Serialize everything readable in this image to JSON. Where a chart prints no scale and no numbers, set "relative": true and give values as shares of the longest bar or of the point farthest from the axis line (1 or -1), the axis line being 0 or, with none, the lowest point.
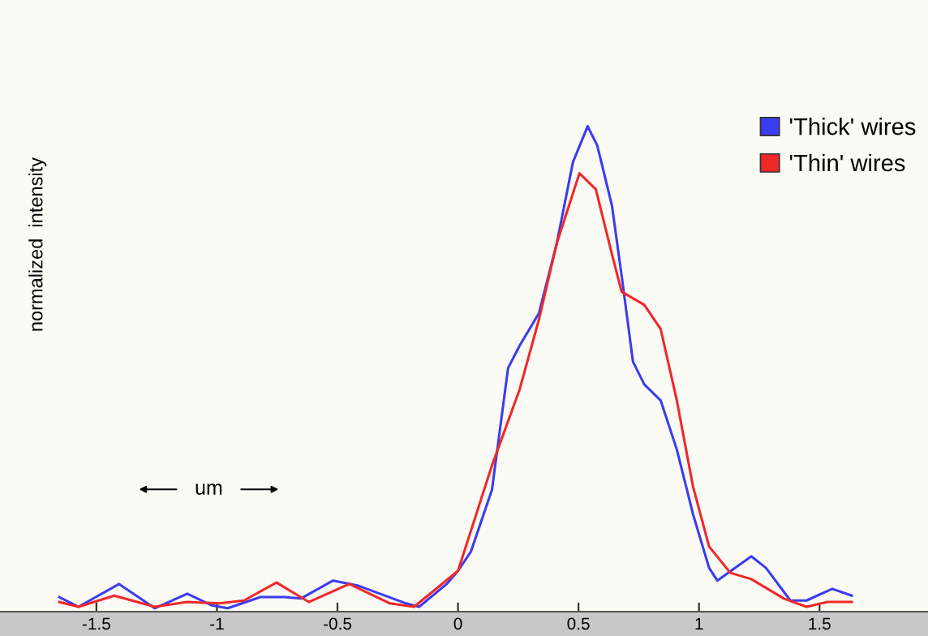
{
  "chart_data": {
    "type": "line",
    "relative": true,
    "ylabel": "normalized  intensity",
    "xlim": [
      -1.9,
      1.95
    ],
    "xticks": [
      -1.5,
      -1,
      -0.5,
      0,
      0.5,
      1,
      1.5
    ],
    "legend": "right",
    "grid": false,
    "marker": "none",
    "line_style": "solid",
    "annotations": [
      "um"
    ],
    "series": [
      {
        "name": "'Thick' wires",
        "color": "#3c3cf0",
        "x": [
          -1.654,
          -1.574,
          -1.406,
          -1.258,
          -1.123,
          -1.022,
          -0.955,
          -0.82,
          -0.72,
          -0.652,
          -0.518,
          -0.417,
          -0.215,
          -0.161,
          -0.047,
          0,
          0.054,
          0.141,
          0.208,
          0.256,
          0.336,
          0.41,
          0.477,
          0.538,
          0.578,
          0.639,
          0.679,
          0.726,
          0.773,
          0.841,
          0.908,
          0.975,
          1.042,
          1.076,
          1.217,
          1.278,
          1.379,
          1.446,
          1.553,
          1.634
        ],
        "values": [
          0.03,
          0.01,
          0.057,
          0.007,
          0.037,
          0.013,
          0.007,
          0.03,
          0.03,
          0.027,
          0.064,
          0.054,
          0.017,
          0.01,
          0.057,
          0.084,
          0.124,
          0.251,
          0.502,
          0.548,
          0.615,
          0.759,
          0.926,
          1.0,
          0.96,
          0.836,
          0.692,
          0.515,
          0.468,
          0.435,
          0.334,
          0.201,
          0.09,
          0.064,
          0.114,
          0.09,
          0.023,
          0.023,
          0.047,
          0.033
        ]
      },
      {
        "name": "'Thin' wires",
        "color": "#f02828",
        "x": [
          -1.654,
          -1.574,
          -1.426,
          -1.258,
          -1.123,
          -0.989,
          -0.888,
          -0.753,
          -0.619,
          -0.451,
          -0.282,
          -0.182,
          0,
          0.141,
          0.256,
          0.336,
          0.41,
          0.504,
          0.572,
          0.639,
          0.679,
          0.773,
          0.841,
          0.908,
          0.975,
          1.042,
          1.13,
          1.217,
          1.352,
          1.446,
          1.533,
          1.634
        ],
        "values": [
          0.02,
          0.01,
          0.033,
          0.01,
          0.02,
          0.017,
          0.023,
          0.06,
          0.02,
          0.057,
          0.017,
          0.01,
          0.084,
          0.301,
          0.458,
          0.602,
          0.759,
          0.903,
          0.87,
          0.736,
          0.659,
          0.632,
          0.582,
          0.435,
          0.258,
          0.134,
          0.08,
          0.067,
          0.027,
          0.01,
          0.02,
          0.02
        ]
      }
    ]
  }
}
